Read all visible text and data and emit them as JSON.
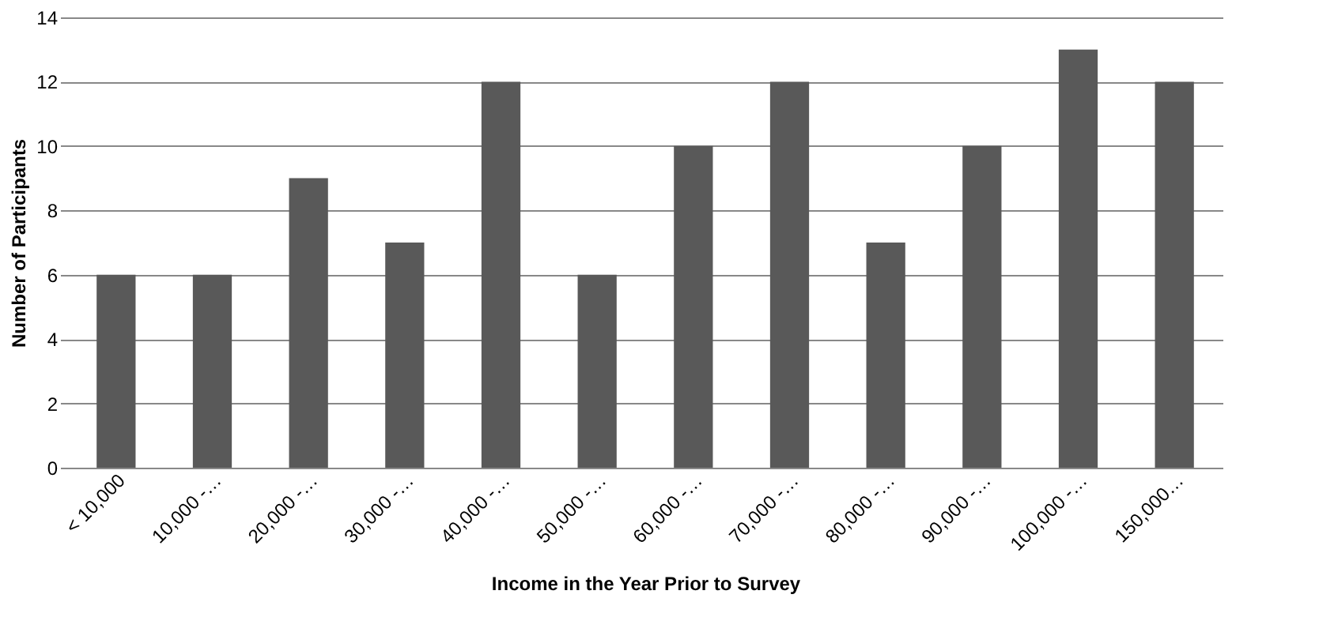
{
  "chart_data": {
    "type": "bar",
    "xlabel": "Income in the Year Prior to Survey",
    "ylabel": "Number of Participants",
    "categories": [
      "< 10,000",
      "10,000 -…",
      "20,000 -…",
      "30,000 -…",
      "40,000 -…",
      "50,000 -…",
      "60,000 -…",
      "70,000 -…",
      "80,000 -…",
      "90,000 -…",
      "100,000 -…",
      "150,000…"
    ],
    "values": [
      6,
      6,
      9,
      7,
      12,
      6,
      10,
      12,
      7,
      10,
      13,
      12
    ],
    "color": "#595959",
    "ylim": [
      0,
      14
    ],
    "yticks": [
      0,
      2,
      4,
      6,
      8,
      10,
      12,
      14
    ],
    "grid": "y"
  }
}
